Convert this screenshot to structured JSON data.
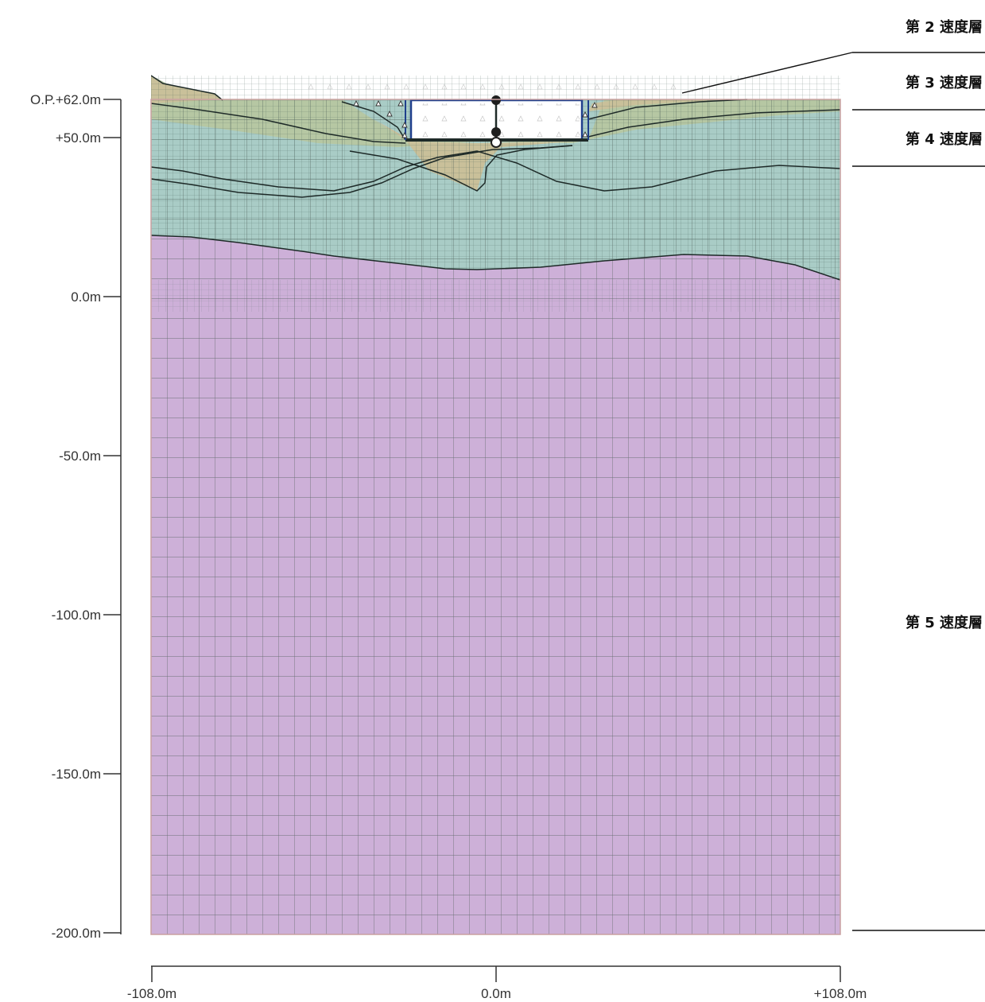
{
  "y_axis": {
    "ticks": [
      {
        "label": "O.P.+62.0m",
        "value": 62
      },
      {
        "label": "+50.0m",
        "value": 50
      },
      {
        "label": "0.0m",
        "value": 0
      },
      {
        "label": "-50.0m",
        "value": -50
      },
      {
        "label": "-100.0m",
        "value": -100
      },
      {
        "label": "-150.0m",
        "value": -150
      },
      {
        "label": "-200.0m",
        "value": -200
      }
    ]
  },
  "x_axis": {
    "ticks": [
      {
        "label": "-108.0m",
        "value": -108
      },
      {
        "label": "0.0m",
        "value": 0
      },
      {
        "label": "+108.0m",
        "value": 108
      }
    ]
  },
  "layers": [
    {
      "label": "第 2 速度層"
    },
    {
      "label": "第 3 速度層"
    },
    {
      "label": "第 4 速度層"
    },
    {
      "label": "第 5 速度層"
    }
  ],
  "colors": {
    "layer5": "#cdb0d8",
    "layer4": "#a9ccc6",
    "layer3": "#b6c7a3",
    "layer2": "#c9c09a",
    "mesh": "#4a5a55",
    "frame": "#c9a0a0",
    "structure": "#1f3f8c"
  }
}
